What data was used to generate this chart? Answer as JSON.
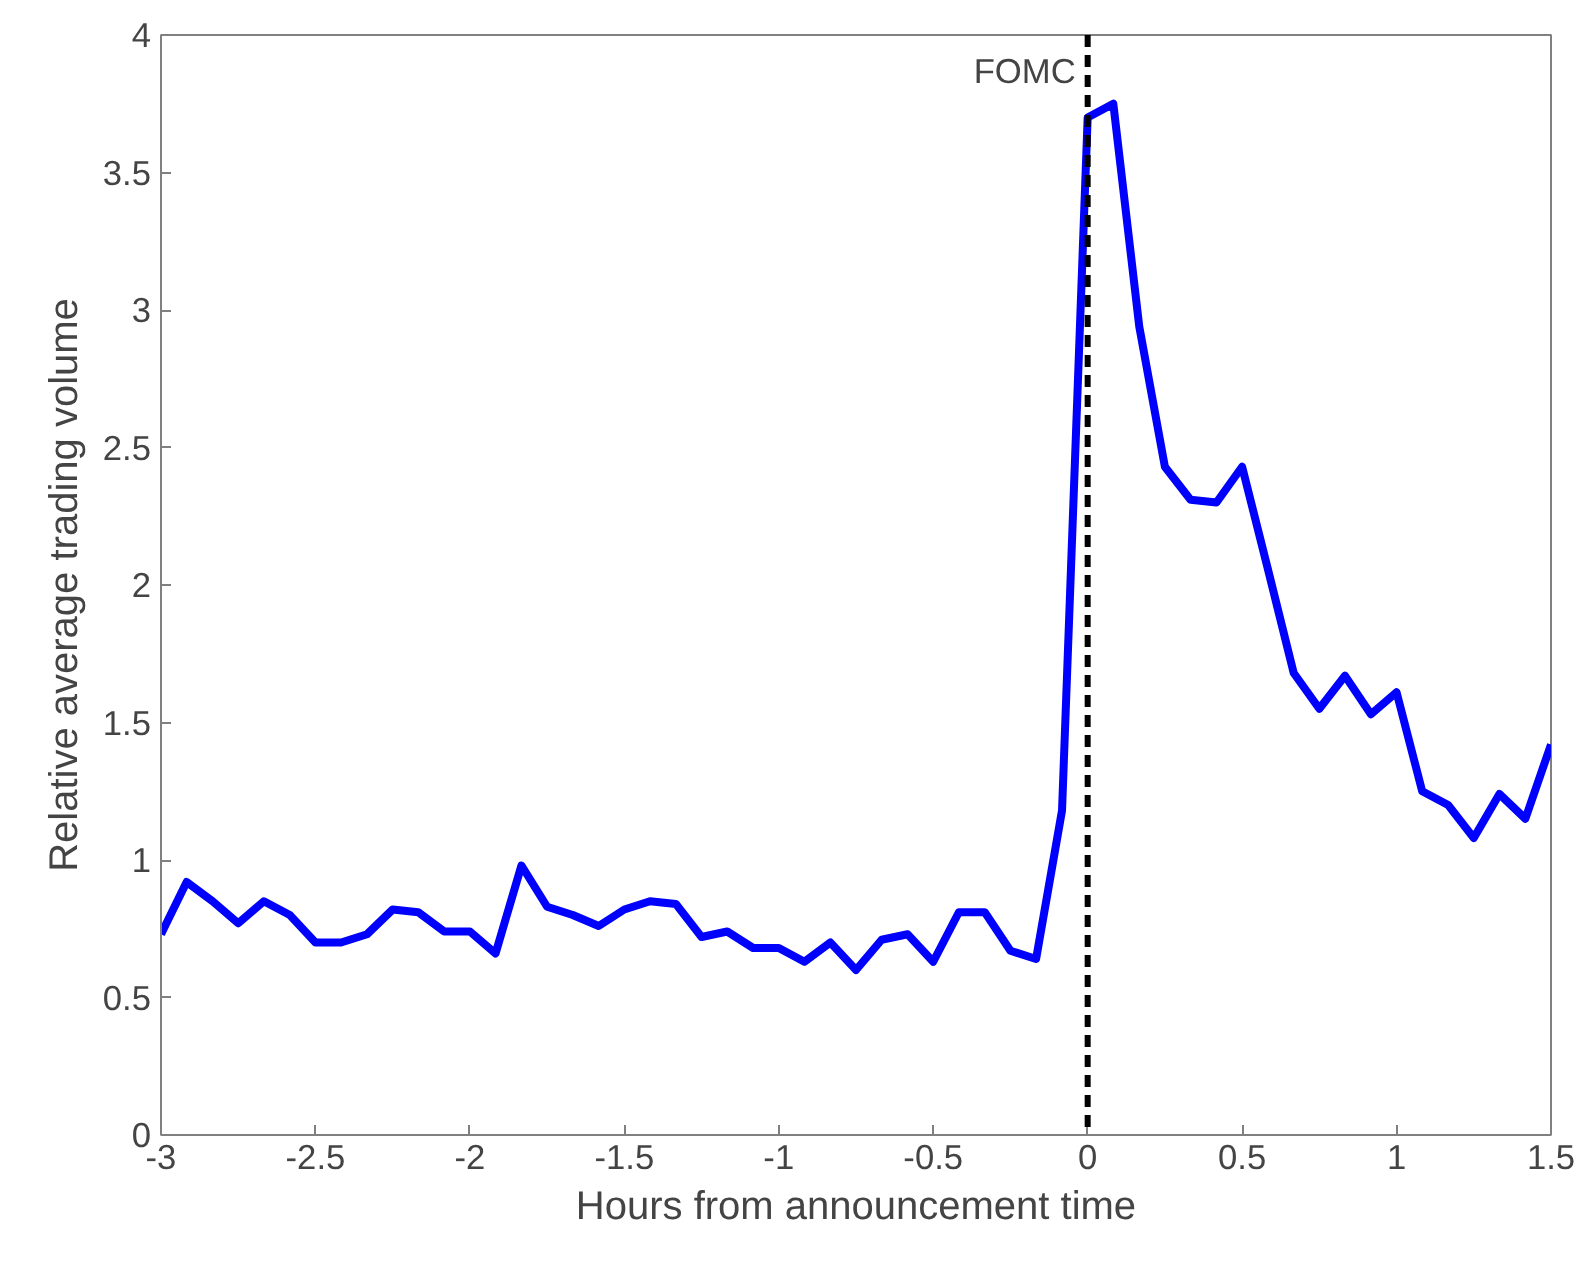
{
  "chart_data": {
    "type": "line",
    "xlabel": "Hours from announcement time",
    "ylabel": "Relative average trading volume",
    "x": [
      -3,
      -2.917,
      -2.833,
      -2.75,
      -2.667,
      -2.583,
      -2.5,
      -2.417,
      -2.333,
      -2.25,
      -2.167,
      -2.083,
      -2,
      -1.917,
      -1.833,
      -1.75,
      -1.667,
      -1.583,
      -1.5,
      -1.417,
      -1.333,
      -1.25,
      -1.167,
      -1.083,
      -1,
      -0.917,
      -0.833,
      -0.75,
      -0.667,
      -0.583,
      -0.5,
      -0.417,
      -0.333,
      -0.25,
      -0.167,
      -0.083,
      0,
      0.083,
      0.167,
      0.25,
      0.333,
      0.417,
      0.5,
      0.583,
      0.667,
      0.75,
      0.833,
      0.917,
      1,
      1.083,
      1.167,
      1.25,
      1.333,
      1.417,
      1.5
    ],
    "series": [
      {
        "color": "#0000ff",
        "values": [
          0.73,
          0.92,
          0.85,
          0.77,
          0.85,
          0.8,
          0.7,
          0.7,
          0.73,
          0.82,
          0.81,
          0.74,
          0.74,
          0.66,
          0.98,
          0.83,
          0.8,
          0.76,
          0.82,
          0.85,
          0.84,
          0.72,
          0.74,
          0.68,
          0.68,
          0.63,
          0.7,
          0.6,
          0.71,
          0.73,
          0.63,
          0.81,
          0.81,
          0.67,
          0.64,
          1.18,
          3.7,
          3.75,
          2.94,
          2.43,
          2.31,
          2.3,
          2.43,
          2.06,
          1.68,
          1.55,
          1.67,
          1.53,
          1.61,
          1.25,
          1.2,
          1.08,
          1.24,
          1.15,
          1.42
        ]
      }
    ],
    "xlim": [
      -3,
      1.5
    ],
    "xticks": [
      -3,
      -2.5,
      -2,
      -1.5,
      -1,
      -0.5,
      0,
      0.5,
      1,
      1.5
    ],
    "ylim": [
      0,
      4
    ],
    "yticks": [
      0,
      0.5,
      1,
      1.5,
      2,
      2.5,
      3,
      3.5,
      4
    ],
    "ref_lines": [
      {
        "axis": "x",
        "value": 0,
        "label": "FOMC",
        "color": "#000000",
        "line_style": "dashed"
      }
    ],
    "grid": false,
    "marker": "none",
    "line_style": "solid"
  }
}
